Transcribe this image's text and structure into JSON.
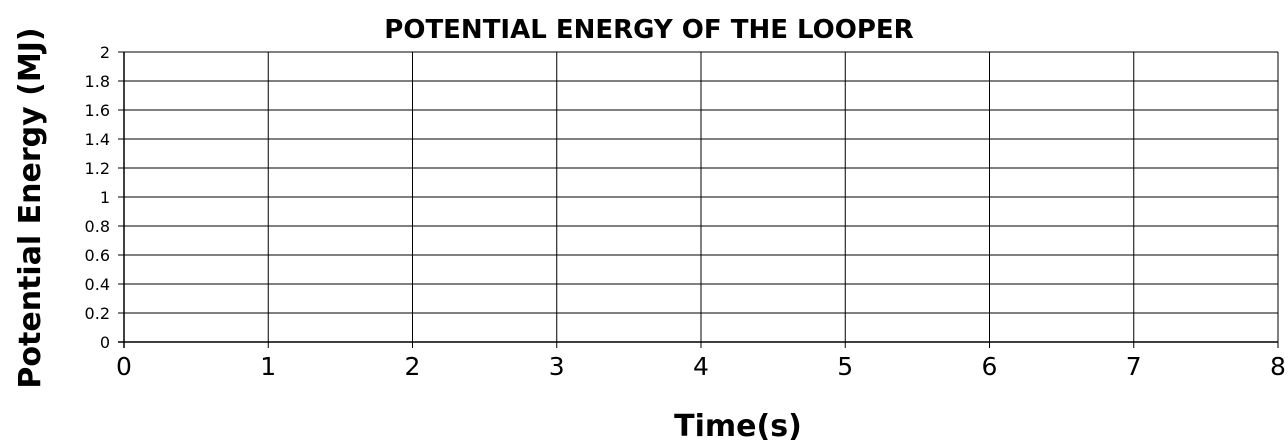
{
  "chart_data": {
    "type": "line",
    "title": "POTENTIAL ENERGY OF THE LOOPER",
    "xlabel": "Time(s)",
    "ylabel": "Potential Energy (MJ)",
    "xlim": [
      0,
      8
    ],
    "ylim": [
      0,
      2
    ],
    "x_ticks": [
      "0",
      "1",
      "2",
      "3",
      "4",
      "5",
      "6",
      "7",
      "8"
    ],
    "y_ticks": [
      "0",
      "0.2",
      "0.4",
      "0.6",
      "0.8",
      "1",
      "1.2",
      "1.4",
      "1.6",
      "1.8",
      "2"
    ],
    "grid": true,
    "series": []
  }
}
